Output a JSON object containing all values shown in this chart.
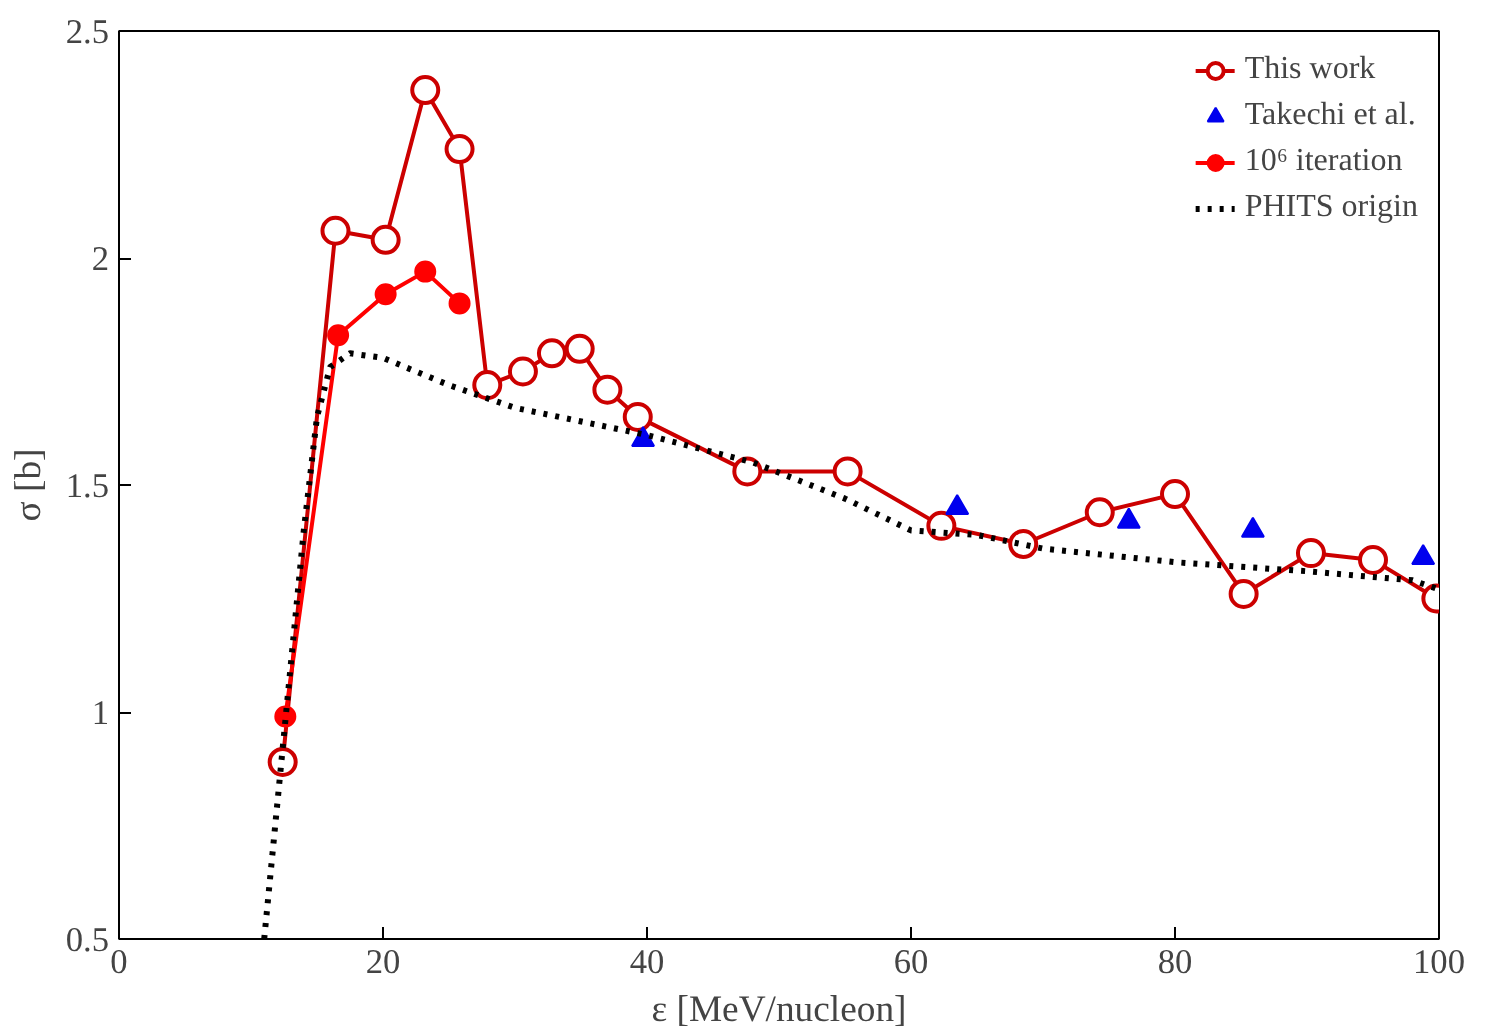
{
  "chart_data": {
    "type": "line",
    "xlabel": "ε [MeV/nucleon]",
    "ylabel": "σ [b]",
    "xlim": [
      0,
      100
    ],
    "ylim": [
      0.5,
      2.5
    ],
    "xticks": [
      0,
      20,
      40,
      60,
      80,
      100
    ],
    "yticks": [
      0.5,
      1,
      1.5,
      2,
      2.5
    ],
    "grid": false,
    "legend": "top right",
    "series": [
      {
        "name": "This work",
        "color": "#cc0000",
        "marker": "circle",
        "line_style": "solid",
        "x": [
          12.4,
          16.4,
          20.2,
          23.2,
          25.8,
          27.9,
          30.6,
          32.8,
          34.9,
          37,
          39.3,
          47.6,
          55.2,
          62.3,
          68.5,
          74.3,
          80,
          85.2,
          90.3,
          95,
          99.8
        ],
        "values": [
          0.89,
          2.06,
          2.04,
          2.37,
          2.24,
          1.72,
          1.75,
          1.79,
          1.8,
          1.71,
          1.65,
          1.53,
          1.53,
          1.41,
          1.37,
          1.44,
          1.48,
          1.26,
          1.35,
          1.335,
          1.25
        ]
      },
      {
        "name": "Takechi et al.",
        "type": "scatter",
        "color": "#0000ee",
        "marker": "triangle",
        "x": [
          39.7,
          63.5,
          76.5,
          85.9,
          98.8
        ],
        "values": [
          1.6,
          1.45,
          1.42,
          1.4,
          1.34
        ]
      },
      {
        "name": "10⁶ iteration",
        "color": "#ff0000",
        "marker": "filled_circle",
        "line_style": "solid",
        "x": [
          12.6,
          16.6,
          20.2,
          23.2,
          25.8
        ],
        "values": [
          0.99,
          1.83,
          1.92,
          1.97,
          1.9
        ]
      },
      {
        "name": "PHITS origin",
        "color": "#000000",
        "marker": "none",
        "line_style": "dotted",
        "x": [
          11,
          12,
          13,
          14,
          15,
          16,
          17.5,
          20,
          25,
          30,
          40,
          48,
          55,
          60,
          65,
          70,
          80,
          90,
          98,
          100
        ],
        "values": [
          0.5,
          0.8,
          1.1,
          1.4,
          1.65,
          1.76,
          1.79,
          1.78,
          1.72,
          1.67,
          1.61,
          1.55,
          1.47,
          1.4,
          1.39,
          1.36,
          1.33,
          1.31,
          1.29,
          1.27
        ]
      }
    ]
  }
}
